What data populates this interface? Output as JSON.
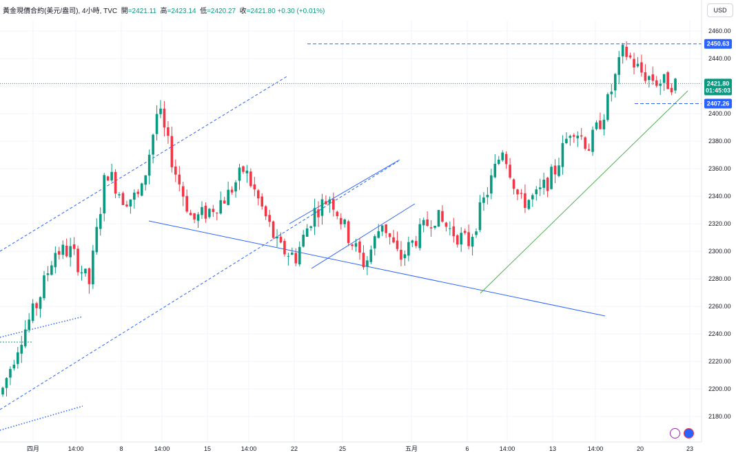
{
  "header": {
    "symbol": "黃金現價合約(美元/盎司)",
    "interval": "4小時",
    "source": "TVC",
    "open_label": "開",
    "open": "=2421.11",
    "high_label": "高",
    "high": "=2423.14",
    "low_label": "低",
    "low": "=2420.27",
    "close_label": "收",
    "close": "=2421.80",
    "change": "+0.30 (+0.01%)"
  },
  "currency_button": "USD",
  "colors": {
    "up": "#089981",
    "down": "#f23645",
    "trend_blue": "#2962ff",
    "trend_green": "#4caf50",
    "price_tag": "#2962ff"
  },
  "icons": [
    "flash-icon",
    "us-flag-icon"
  ],
  "chart_data": {
    "type": "candlestick",
    "title": "",
    "y_axis": {
      "ylim": [
        2170,
        2470
      ],
      "ticks": [
        "2460.00",
        "2440.00",
        "2420.00",
        "2400.00",
        "2380.00",
        "2360.00",
        "2340.00",
        "2320.00",
        "2300.00",
        "2280.00",
        "2260.00",
        "2240.00",
        "2220.00",
        "2200.00",
        "2180.00"
      ]
    },
    "x_axis": {
      "ticks": [
        "四月",
        "14:00",
        "8",
        "14:00",
        "15",
        "14:00",
        "22",
        "25",
        "五月",
        "6",
        "14:00",
        "13",
        "14:00",
        "20",
        "23"
      ]
    },
    "grid": true,
    "levels": [
      {
        "label": "2450.63",
        "value": 2450.63,
        "style": "dashed"
      },
      {
        "label": "2407.26",
        "value": 2407.26,
        "style": "dashed"
      }
    ],
    "last_price": {
      "label": "2421.80",
      "countdown": "01:45:03",
      "value": 2421.8
    },
    "ohlc_anchors": [
      [
        2186,
        2200
      ],
      [
        2200,
        2236
      ],
      [
        2222,
        2262
      ],
      [
        2248,
        2300
      ],
      [
        2286,
        2300
      ],
      [
        2288,
        2276
      ],
      [
        2310,
        2360
      ],
      [
        2350,
        2338
      ],
      [
        2342,
        2340
      ],
      [
        2340,
        2404
      ],
      [
        2390,
        2358
      ],
      [
        2340,
        2322
      ],
      [
        2300,
        2330
      ],
      [
        2318,
        2340
      ],
      [
        2330,
        2360
      ],
      [
        2340,
        2332
      ],
      [
        2310,
        2302
      ],
      [
        2305,
        2296
      ],
      [
        2300,
        2328
      ],
      [
        2312,
        2340
      ],
      [
        2332,
        2312
      ],
      [
        2302,
        2290
      ],
      [
        2300,
        2322
      ],
      [
        2322,
        2294
      ],
      [
        2294,
        2310
      ],
      [
        2305,
        2326
      ],
      [
        2315,
        2315
      ],
      [
        2312,
        2306
      ],
      [
        2300,
        2340
      ],
      [
        2350,
        2376
      ],
      [
        2360,
        2335
      ],
      [
        2340,
        2340
      ],
      [
        2347,
        2358
      ],
      [
        2360,
        2392
      ],
      [
        2394,
        2376
      ],
      [
        2380,
        2405
      ],
      [
        2438,
        2446
      ],
      [
        2450,
        2430
      ],
      [
        2418,
        2423
      ],
      [
        2418,
        2421.8
      ]
    ]
  }
}
